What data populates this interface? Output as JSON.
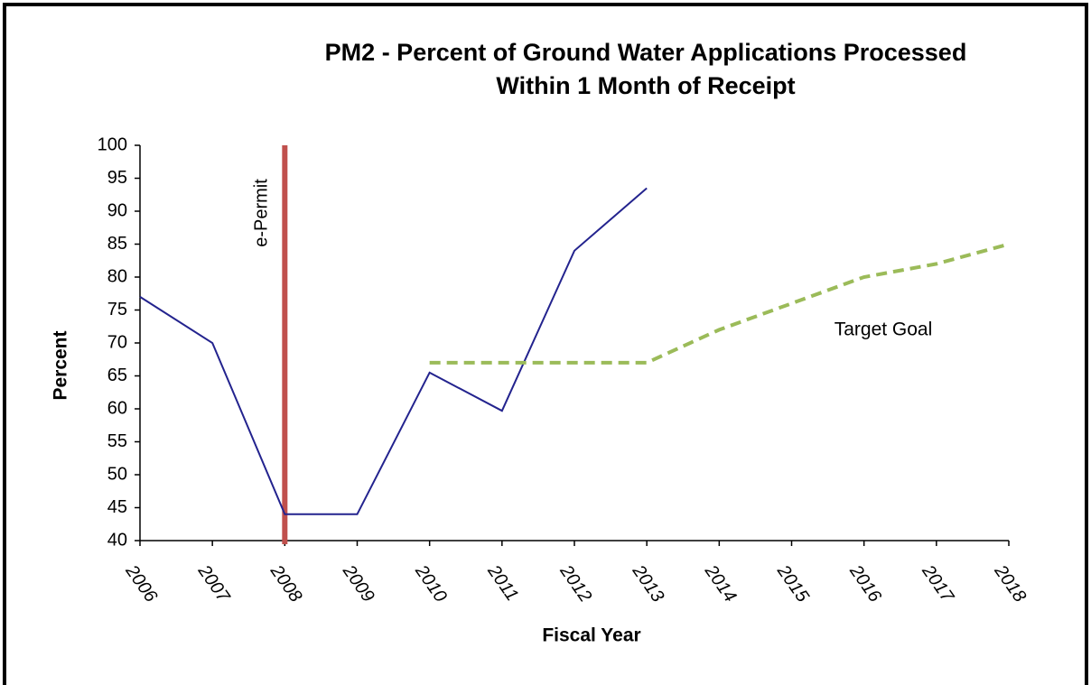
{
  "chart_data": {
    "type": "line",
    "title": "PM2 - Percent of Ground Water Applications Processed",
    "subtitle": "Within 1 Month of Receipt",
    "x_label": "Fiscal Year",
    "y_label": "Percent",
    "categories": [
      "2006",
      "2007",
      "2008",
      "2009",
      "2010",
      "2011",
      "2012",
      "2013",
      "2014",
      "2015",
      "2016",
      "2017",
      "2018"
    ],
    "series": [
      {
        "color": "#23238e",
        "dashed": false,
        "values": [
          77,
          70,
          44,
          44,
          65.5,
          59.7,
          84,
          93.5,
          null,
          null,
          null,
          null,
          null
        ]
      },
      {
        "name": "Target Goal",
        "color": "#9bbb59",
        "dashed": true,
        "values": [
          null,
          null,
          null,
          null,
          67,
          67,
          67,
          67,
          72,
          76,
          80,
          82,
          85
        ]
      }
    ],
    "annotations": [
      {
        "label": "e-Permit",
        "x": "2008",
        "color": "#c0504d"
      }
    ],
    "ylim": [
      40,
      100
    ],
    "yticks": [
      40,
      45,
      50,
      55,
      60,
      65,
      70,
      75,
      80,
      85,
      90,
      95,
      100
    ]
  }
}
